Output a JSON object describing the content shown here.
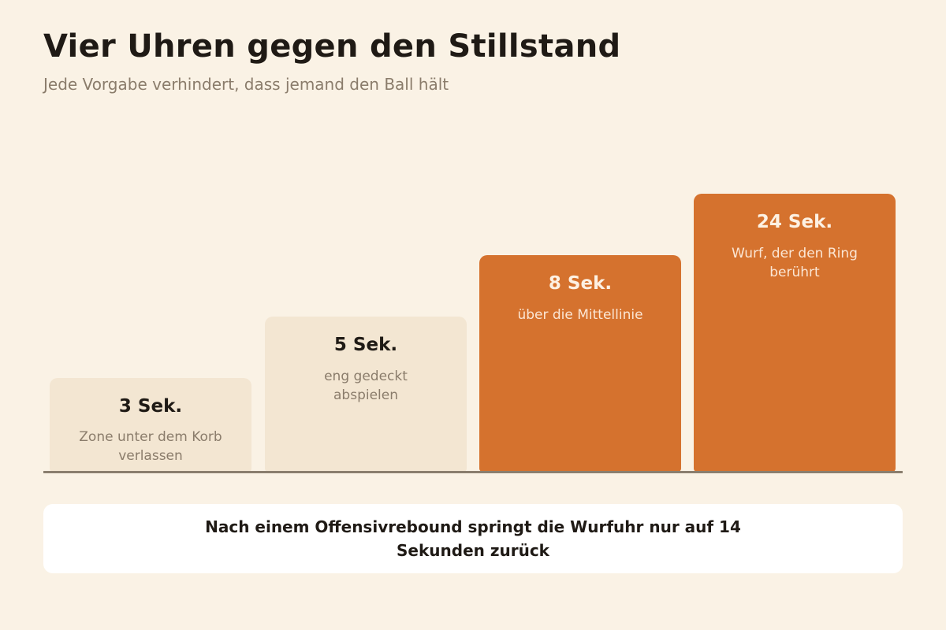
{
  "header": {
    "title": "Vier Uhren gegen den Stillstand",
    "subtitle": "Jede Vorgabe verhindert, dass jemand den Ball hält"
  },
  "colors": {
    "background": "#faf2e5",
    "light_bar": "#f3e6d2",
    "accent_bar": "#d5722e",
    "baseline": "#8a7e6e",
    "note_background": "#ffffff"
  },
  "rules": [
    {
      "seconds": 3,
      "value_label": "3 Sek.",
      "description": "Zone unter dem Korb verlassen",
      "style": "light"
    },
    {
      "seconds": 5,
      "value_label": "5 Sek.",
      "description": "eng gedeckt abspielen",
      "style": "light"
    },
    {
      "seconds": 8,
      "value_label": "8 Sek.",
      "description": "über die Mittellinie",
      "style": "accent"
    },
    {
      "seconds": 24,
      "value_label": "24 Sek.",
      "description": "Wurf, der den Ring berührt",
      "style": "accent"
    }
  ],
  "note": {
    "text": "Nach einem Offensivrebound springt die Wurfuhr nur auf 14 Sekunden zurück"
  }
}
